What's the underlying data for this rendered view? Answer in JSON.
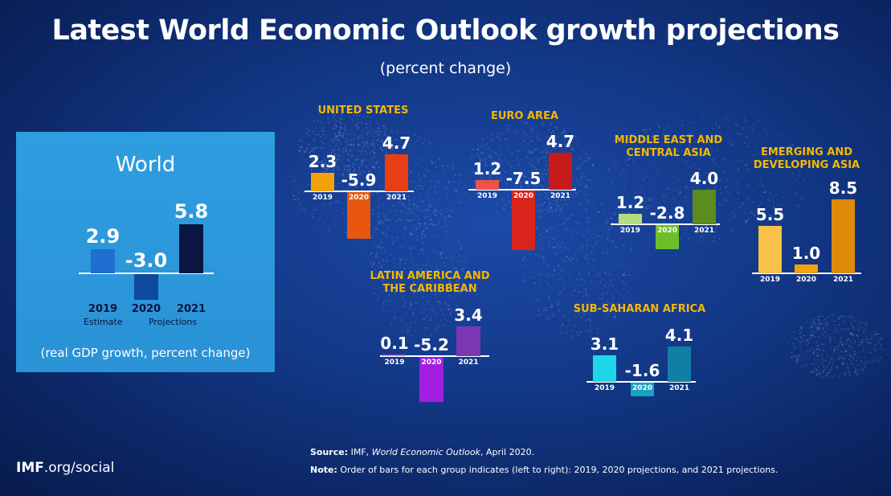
{
  "title": "Latest World Economic Outlook growth projections",
  "subtitle": "(percent change)",
  "source_label": "Source:",
  "source_text": "IMF, ",
  "source_italic": "World Economic Outlook",
  "source_tail": ", April 2020.",
  "note_label": "Note:",
  "note_text": "Order of bars for each group indicates (left to right): 2019, 2020 projections, and 2021 projections.",
  "brand_bold": "IMF",
  "brand_rest": ".org/social",
  "world": {
    "title": "World",
    "caption": "(real GDP growth, percent change)",
    "sublabel_estimate": "Estimate",
    "sublabel_projections": "Projections"
  },
  "chart_data": [
    {
      "type": "bar",
      "title": "World",
      "categories": [
        "2019",
        "2020",
        "2021"
      ],
      "values": [
        2.9,
        -3.0,
        5.8
      ],
      "labels": [
        "2.9",
        "-3.0",
        "5.8"
      ],
      "colors": [
        "#1f6fd1",
        "#0e4b9c",
        "#0a1540"
      ],
      "year_colors": [
        "#0a1540",
        "#0a1540",
        "#0a1540"
      ]
    },
    {
      "type": "bar",
      "title": "UNITED STATES",
      "categories": [
        "2019",
        "2020",
        "2021"
      ],
      "values": [
        2.3,
        -5.9,
        4.7
      ],
      "labels": [
        "2.3",
        "-5.9",
        "4.7"
      ],
      "colors": [
        "#f2a20c",
        "#e8560f",
        "#e83e14"
      ],
      "year_colors": [
        "#ffffff",
        "#ffffff",
        "#ffffff"
      ]
    },
    {
      "type": "bar",
      "title": "EURO AREA",
      "categories": [
        "2019",
        "2020",
        "2021"
      ],
      "values": [
        1.2,
        -7.5,
        4.7
      ],
      "labels": [
        "1.2",
        "-7.5",
        "4.7"
      ],
      "colors": [
        "#f0524a",
        "#d9241b",
        "#c71a1a"
      ],
      "year_colors": [
        "#ffffff",
        "#ffffff",
        "#ffffff"
      ]
    },
    {
      "type": "bar",
      "title": "MIDDLE EAST AND\nCENTRAL ASIA",
      "categories": [
        "2019",
        "2020",
        "2021"
      ],
      "values": [
        1.2,
        -2.8,
        4.0
      ],
      "labels": [
        "1.2",
        "-2.8",
        "4.0"
      ],
      "colors": [
        "#b6dc80",
        "#6cbf2a",
        "#5a8c1e"
      ],
      "year_colors": [
        "#ffffff",
        "#ffffff",
        "#ffffff"
      ]
    },
    {
      "type": "bar",
      "title": "EMERGING AND\nDEVELOPING ASIA",
      "categories": [
        "2019",
        "2020",
        "2021"
      ],
      "values": [
        5.5,
        1.0,
        8.5
      ],
      "labels": [
        "5.5",
        "1.0",
        "8.5"
      ],
      "colors": [
        "#f8c147",
        "#f2a20c",
        "#e08a0c"
      ],
      "year_colors": [
        "#ffffff",
        "#ffffff",
        "#ffffff"
      ]
    },
    {
      "type": "bar",
      "title": "LATIN AMERICA AND\nTHE CARIBBEAN",
      "categories": [
        "2019",
        "2020",
        "2021"
      ],
      "values": [
        0.1,
        -5.2,
        3.4
      ],
      "labels": [
        "0.1",
        "-5.2",
        "3.4"
      ],
      "colors": [
        "#d94fe8",
        "#a21ee0",
        "#7b36b3"
      ],
      "year_colors": [
        "#ffffff",
        "#ffffff",
        "#ffffff"
      ]
    },
    {
      "type": "bar",
      "title": "SUB-SAHARAN AFRICA",
      "categories": [
        "2019",
        "2020",
        "2021"
      ],
      "values": [
        3.1,
        -1.6,
        4.1
      ],
      "labels": [
        "3.1",
        "-1.6",
        "4.1"
      ],
      "colors": [
        "#1fd6e8",
        "#16a5c0",
        "#117fa5"
      ],
      "year_colors": [
        "#ffffff",
        "#ffffff",
        "#ffffff"
      ]
    }
  ]
}
